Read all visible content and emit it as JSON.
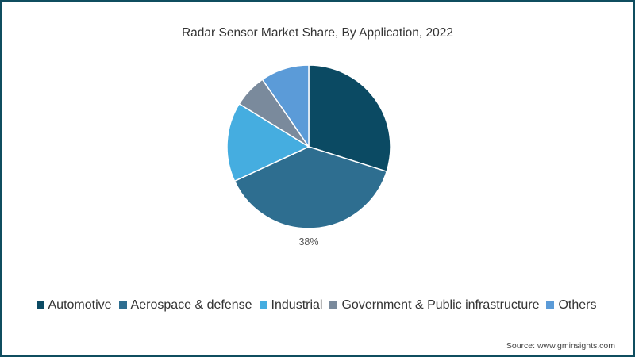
{
  "chart_data": {
    "type": "pie",
    "title": "Radar Sensor Market Share, By Application, 2022",
    "categories": [
      "Automotive",
      "Aerospace & defense",
      "Industrial",
      "Government & Public infrastructure",
      "Others"
    ],
    "values": [
      29.9,
      38.2,
      15.7,
      6.6,
      9.6
    ],
    "unit": "%",
    "colors": [
      "#0b4a63",
      "#2e6e90",
      "#45ade0",
      "#7a8a9c",
      "#5b9bd8"
    ],
    "data_labels": [
      {
        "category": "Aerospace & defense",
        "text": "38%"
      }
    ],
    "start_angle": "12 o'clock, clockwise",
    "legend_position": "bottom",
    "source": "Source: www.gminsights.com"
  },
  "title": "Radar Sensor Market Share, By Application, 2022",
  "label_aero": "38%",
  "legend": [
    {
      "label": "Automotive",
      "color": "#0b4a63"
    },
    {
      "label": "Aerospace & defense",
      "color": "#2e6e90"
    },
    {
      "label": "Industrial",
      "color": "#45ade0"
    },
    {
      "label": "Government & Public infrastructure",
      "color": "#7a8a9c"
    },
    {
      "label": "Others",
      "color": "#5b9bd8"
    }
  ],
  "source": "Source: www.gminsights.com",
  "border_color": "#0f4d5f"
}
